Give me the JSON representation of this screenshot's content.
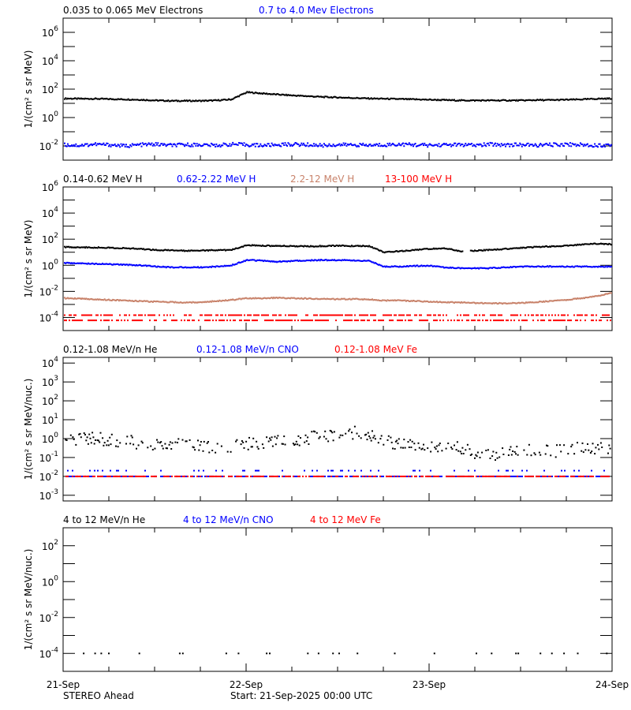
{
  "footer": {
    "spacecraft": "STEREO Ahead",
    "start": "Start: 21-Sep-2025 00:00 UTC"
  },
  "colors": {
    "black": "#000000",
    "blue": "#0000ff",
    "brown": "#c8826a",
    "red": "#ff0000"
  },
  "chart_data": [
    {
      "type": "scatter",
      "ylabel": "1/(cm² s sr MeV)",
      "yscale": "log",
      "ylim": [
        0.001,
        10000000
      ],
      "ytick_labels": [
        "10^6",
        "10^4",
        "10^2",
        "10^0",
        "10^-2"
      ],
      "xlim": [
        "21-Sep",
        "24-Sep"
      ],
      "xtick_labels": [
        "21-Sep",
        "22-Sep",
        "23-Sep",
        "24-Sep"
      ],
      "x_start": "21-Sep-2025 00:00 UTC",
      "x_interval_hours": 2,
      "series": [
        {
          "name": "0.035 to 0.065 MeV Electrons",
          "color": "#000000",
          "values": [
            22,
            21,
            21,
            20,
            19,
            18,
            16,
            15,
            15,
            15,
            16,
            19,
            60,
            50,
            42,
            36,
            32,
            28,
            26,
            24,
            22,
            21,
            20,
            19,
            18,
            17,
            16,
            16,
            16,
            16,
            16,
            17,
            17,
            18,
            19,
            21,
            22
          ]
        },
        {
          "name": "0.7 to 4.0 Mev Electrons",
          "color": "#0000ff",
          "values": [
            0.012,
            0.011,
            0.013,
            0.012,
            0.01,
            0.012,
            0.013,
            0.011,
            0.012,
            0.012,
            0.011,
            0.013,
            0.012,
            0.011,
            0.012,
            0.013,
            0.012,
            0.011,
            0.012,
            0.012,
            0.011,
            0.012,
            0.013,
            0.012,
            0.011,
            0.012,
            0.012,
            0.011,
            0.013,
            0.012,
            0.012,
            0.011,
            0.012,
            0.013,
            0.012,
            0.011,
            0.012
          ]
        }
      ]
    },
    {
      "type": "scatter",
      "ylabel": "1/(cm² s sr MeV)",
      "yscale": "log",
      "ylim": [
        1e-05,
        1000000
      ],
      "ytick_labels": [
        "10^6",
        "10^4",
        "10^2",
        "10^0",
        "10^-2",
        "10^-4"
      ],
      "xlim": [
        "21-Sep",
        "24-Sep"
      ],
      "x_start": "21-Sep-2025 00:00 UTC",
      "x_interval_hours": 2,
      "series": [
        {
          "name": "0.14-0.62 MeV H",
          "color": "#000000",
          "values": [
            25,
            24,
            23,
            22,
            20,
            18,
            15,
            14,
            13,
            14,
            14,
            15,
            35,
            32,
            30,
            30,
            28,
            30,
            32,
            30,
            30,
            10,
            12,
            15,
            18,
            20,
            12,
            13,
            15,
            18,
            22,
            25,
            28,
            32,
            38,
            45,
            40
          ]
        },
        {
          "name": "0.62-2.22 MeV H",
          "color": "#0000ff",
          "values": [
            1.5,
            1.4,
            1.3,
            1.2,
            1.1,
            1.0,
            0.8,
            0.7,
            0.7,
            0.7,
            0.8,
            1.0,
            2.5,
            2.3,
            1.8,
            2.2,
            2.4,
            2.5,
            2.5,
            2.3,
            2.2,
            0.8,
            0.8,
            0.9,
            0.9,
            0.7,
            0.6,
            0.6,
            0.6,
            0.7,
            0.8,
            0.8,
            0.8,
            0.8,
            0.8,
            0.8,
            0.8
          ]
        },
        {
          "name": "2.2-12 MeV H",
          "color": "#c8826a",
          "values": [
            0.003,
            0.0028,
            0.0025,
            0.0022,
            0.002,
            0.0018,
            0.0016,
            0.0015,
            0.0014,
            0.0015,
            0.0018,
            0.0022,
            0.003,
            0.003,
            0.0032,
            0.003,
            0.0028,
            0.0026,
            0.0025,
            0.0026,
            0.0024,
            0.002,
            0.002,
            0.0018,
            0.0016,
            0.0015,
            0.0014,
            0.0013,
            0.0012,
            0.0012,
            0.0013,
            0.0015,
            0.0018,
            0.0023,
            0.003,
            0.0045,
            0.008
          ]
        },
        {
          "name": "13-100 MeV H",
          "color": "#ff0000",
          "levels": [
            0.00015,
            6e-05
          ]
        }
      ]
    },
    {
      "type": "scatter",
      "ylabel": "1/(cm² s sr MeV/nuc.)",
      "yscale": "log",
      "ylim": [
        0.0005,
        20000
      ],
      "ytick_labels": [
        "10^4",
        "10^3",
        "10^2",
        "10^1",
        "10^0",
        "10^-1",
        "10^-2",
        "10^-3"
      ],
      "xlim": [
        "21-Sep",
        "24-Sep"
      ],
      "x_start": "21-Sep-2025 00:00 UTC",
      "x_interval_hours": 2,
      "series": [
        {
          "name": "0.12-1.08 MeV/n He",
          "color": "#000000",
          "values": [
            0.8,
            0.9,
            1.0,
            0.8,
            0.7,
            0.6,
            0.5,
            0.5,
            0.4,
            0.35,
            0.3,
            0.4,
            0.5,
            0.6,
            0.7,
            0.9,
            1.0,
            1.3,
            1.8,
            2.0,
            1.5,
            0.8,
            0.5,
            0.4,
            0.4,
            0.5,
            0.3,
            0.2,
            0.15,
            0.2,
            0.2,
            0.25,
            0.2,
            0.25,
            0.3,
            0.3,
            0.3
          ]
        },
        {
          "name": "0.12-1.08 MeV/n CNO",
          "color": "#0000ff",
          "levels": [
            0.01,
            0.02
          ]
        },
        {
          "name": "0.12-1.08 MeV Fe",
          "color": "#ff0000",
          "levels": [
            0.01
          ]
        }
      ]
    },
    {
      "type": "scatter",
      "ylabel": "1/(cm² s sr MeV/nuc.)",
      "yscale": "log",
      "ylim": [
        1e-05,
        1000
      ],
      "ytick_labels": [
        "10^2",
        "10^0",
        "10^-2",
        "10^-4"
      ],
      "xlim": [
        "21-Sep",
        "24-Sep"
      ],
      "series": [
        {
          "name": "4 to 12 MeV/n He",
          "color": "#000000",
          "points_time": [
            "21-Sep 02:36",
            "21-Sep 04:06",
            "21-Sep 04:54",
            "21-Sep 05:54",
            "21-Sep 09:54",
            "21-Sep 15:12",
            "21-Sep 15:36",
            "21-Sep 21:18",
            "21-Sep 22:54",
            "22-Sep 02:36",
            "22-Sep 03:00",
            "22-Sep 08:00",
            "22-Sep 09:24",
            "22-Sep 11:18",
            "22-Sep 12:06",
            "22-Sep 14:30",
            "22-Sep 19:24",
            "23-Sep 00:36",
            "23-Sep 06:06",
            "23-Sep 08:06",
            "23-Sep 11:18",
            "23-Sep 11:36",
            "23-Sep 14:30",
            "23-Sep 16:00",
            "23-Sep 17:36",
            "23-Sep 19:24",
            "23-Sep 23:12"
          ],
          "value": 0.0001
        },
        {
          "name": "4 to 12 MeV/n CNO",
          "color": "#0000ff"
        },
        {
          "name": "4 to 12 MeV Fe",
          "color": "#ff0000"
        }
      ]
    }
  ]
}
